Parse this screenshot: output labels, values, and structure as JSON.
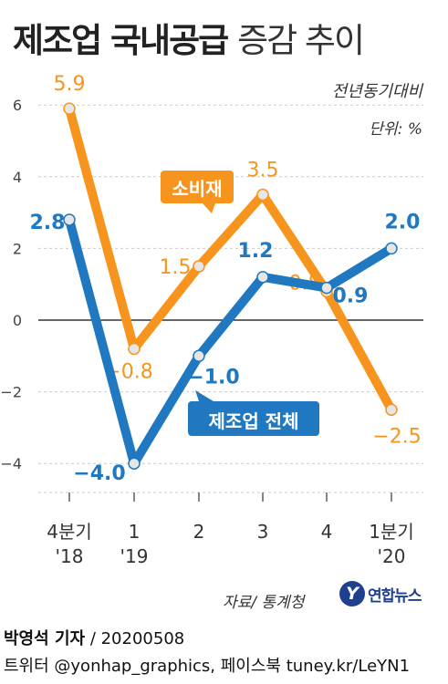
{
  "title": {
    "main": "제조업 국내공급",
    "sub": "증감 추이"
  },
  "basis": "전년동기대비",
  "unit": "단위: %",
  "source": "자료/ 통계청",
  "logo": {
    "mark": "Y",
    "text": "연합뉴스"
  },
  "byline": {
    "reporter": "박영석 기자",
    "date": "20200508"
  },
  "social": "트위터 @yonhap_graphics, 페이스북 tuney.kr/LeYN1",
  "colors": {
    "consumer": "#f7941d",
    "manufacturing": "#1f78c0",
    "grid": "#cccccc",
    "zero": "#333333"
  },
  "chart_data": {
    "type": "line",
    "categories": [
      [
        "4분기",
        "'18"
      ],
      [
        "1",
        "'19"
      ],
      [
        "2",
        ""
      ],
      [
        "3",
        ""
      ],
      [
        "4",
        ""
      ],
      [
        "1분기",
        "'20"
      ]
    ],
    "ylim": [
      -5,
      6.5
    ],
    "yticks": [
      "6",
      "4",
      "2",
      "0",
      "−2",
      "−4"
    ],
    "ytick_values": [
      6,
      4,
      2,
      0,
      -2,
      -4
    ],
    "grid": true,
    "series": [
      {
        "name": "소비재",
        "values": [
          5.9,
          -0.8,
          1.5,
          3.5,
          0.8,
          -2.5
        ],
        "labels": [
          "5.9",
          "−0.8",
          "1.5",
          "3.5",
          "0.8",
          "−2.5"
        ]
      },
      {
        "name": "제조업 전체",
        "values": [
          2.8,
          -4.0,
          -1.0,
          1.2,
          0.9,
          2.0
        ],
        "labels": [
          "2.8",
          "−4.0",
          "−1.0",
          "1.2",
          "0.9",
          "2.0"
        ]
      }
    ]
  }
}
